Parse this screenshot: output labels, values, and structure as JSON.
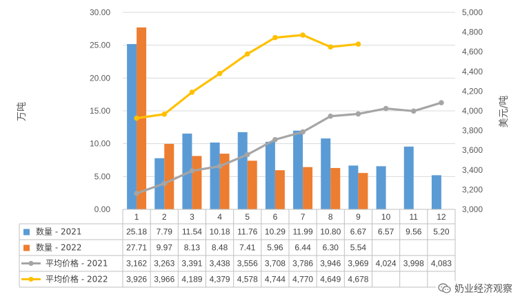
{
  "chart_data": {
    "type": "bar-line-combo",
    "categories": [
      "1",
      "2",
      "3",
      "4",
      "5",
      "6",
      "7",
      "8",
      "9",
      "10",
      "11",
      "12"
    ],
    "y_left": {
      "label": "万吨",
      "range": [
        0,
        30
      ],
      "ticks": [
        "0.00",
        "5.00",
        "10.00",
        "15.00",
        "20.00",
        "25.00",
        "30.00"
      ]
    },
    "y_right": {
      "label": "美元/吨",
      "range": [
        3000,
        5000
      ],
      "ticks": [
        "3,000",
        "3,200",
        "3,400",
        "3,600",
        "3,800",
        "4,000",
        "4,200",
        "4,400",
        "4,600",
        "4,800",
        "5,000"
      ]
    },
    "series": [
      {
        "name": "数量 - 2021",
        "kind": "bar",
        "axis": "left",
        "color": "#5b9bd5",
        "values": [
          25.18,
          7.79,
          11.54,
          10.18,
          11.76,
          10.29,
          11.99,
          10.8,
          6.67,
          6.57,
          9.56,
          5.2
        ],
        "labels": [
          "25.18",
          "7.79",
          "11.54",
          "10.18",
          "11.76",
          "10.29",
          "11.99",
          "10.80",
          "6.67",
          "6.57",
          "9.56",
          "5.20"
        ]
      },
      {
        "name": "数量 - 2022",
        "kind": "bar",
        "axis": "left",
        "color": "#ed7d31",
        "values": [
          27.71,
          9.97,
          8.13,
          8.48,
          7.41,
          5.96,
          6.44,
          6.3,
          5.54,
          null,
          null,
          null
        ],
        "labels": [
          "27.71",
          "9.97",
          "8.13",
          "8.48",
          "7.41",
          "5.96",
          "6.44",
          "6.30",
          "5.54",
          "",
          "",
          ""
        ]
      },
      {
        "name": "平均价格 - 2021",
        "kind": "line",
        "axis": "right",
        "color": "#a5a5a5",
        "values": [
          3162,
          3263,
          3391,
          3438,
          3556,
          3708,
          3786,
          3946,
          3969,
          4024,
          3998,
          4083
        ],
        "labels": [
          "3,162",
          "3,263",
          "3,391",
          "3,438",
          "3,556",
          "3,708",
          "3,786",
          "3,946",
          "3,969",
          "4,024",
          "3,998",
          "4,083"
        ]
      },
      {
        "name": "平均价格 - 2022",
        "kind": "line",
        "axis": "right",
        "color": "#ffc000",
        "values": [
          3926,
          3966,
          4189,
          4379,
          4578,
          4744,
          4770,
          4649,
          4678,
          null,
          null,
          null
        ],
        "labels": [
          "3,926",
          "3,966",
          "4,189",
          "4,379",
          "4,578",
          "4,744",
          "4,770",
          "4,649",
          "4,678",
          "",
          "",
          ""
        ]
      }
    ],
    "grid": true,
    "legend": "data-table-below"
  },
  "watermark": {
    "text": "奶业经济观察"
  }
}
